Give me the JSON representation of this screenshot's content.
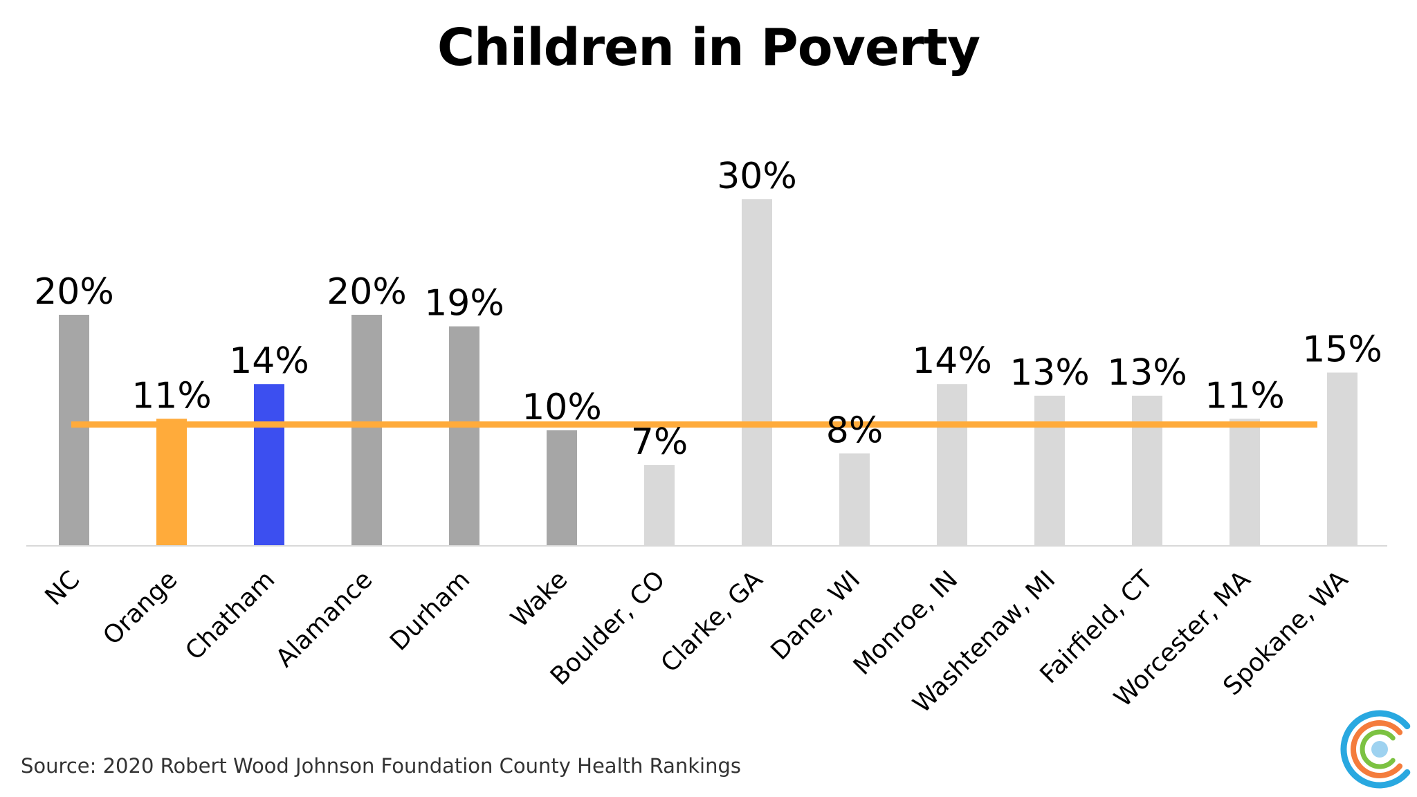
{
  "chart_data": {
    "type": "bar",
    "title": "Children in Poverty",
    "xlabel": "",
    "ylabel": "",
    "ylim": [
      0,
      32
    ],
    "grid": false,
    "legend": "none",
    "categories": [
      "NC",
      "Orange",
      "Chatham",
      "Alamance",
      "Durham",
      "Wake",
      "Boulder, CO",
      "Clarke, GA",
      "Dane, WI",
      "Monroe, IN",
      "Washtenaw, MI",
      "Fairfield, CT",
      "Worcester, MA",
      "Spokane, WA"
    ],
    "values": [
      20,
      11,
      14,
      20,
      19,
      10,
      7,
      30,
      8,
      14,
      13,
      13,
      11,
      15
    ],
    "value_labels": [
      "20%",
      "11%",
      "14%",
      "20%",
      "19%",
      "10%",
      "7%",
      "30%",
      "8%",
      "14%",
      "13%",
      "13%",
      "11%",
      "15%"
    ],
    "bar_colors": [
      "#a6a6a6",
      "#ffab3b",
      "#3c4ff0",
      "#a6a6a6",
      "#a6a6a6",
      "#a6a6a6",
      "#d9d9d9",
      "#d9d9d9",
      "#d9d9d9",
      "#d9d9d9",
      "#d9d9d9",
      "#d9d9d9",
      "#d9d9d9",
      "#d9d9d9"
    ],
    "reference_line": {
      "value": 10.5,
      "color": "#ffab3b"
    }
  },
  "source": "Source: 2020 Robert Wood Johnson Foundation County Health Rankings",
  "logo": {
    "icon": "concentric-c-logo",
    "colors": [
      "#29a8e0",
      "#f47c3c",
      "#7cc242",
      "#9ed2f0"
    ]
  }
}
